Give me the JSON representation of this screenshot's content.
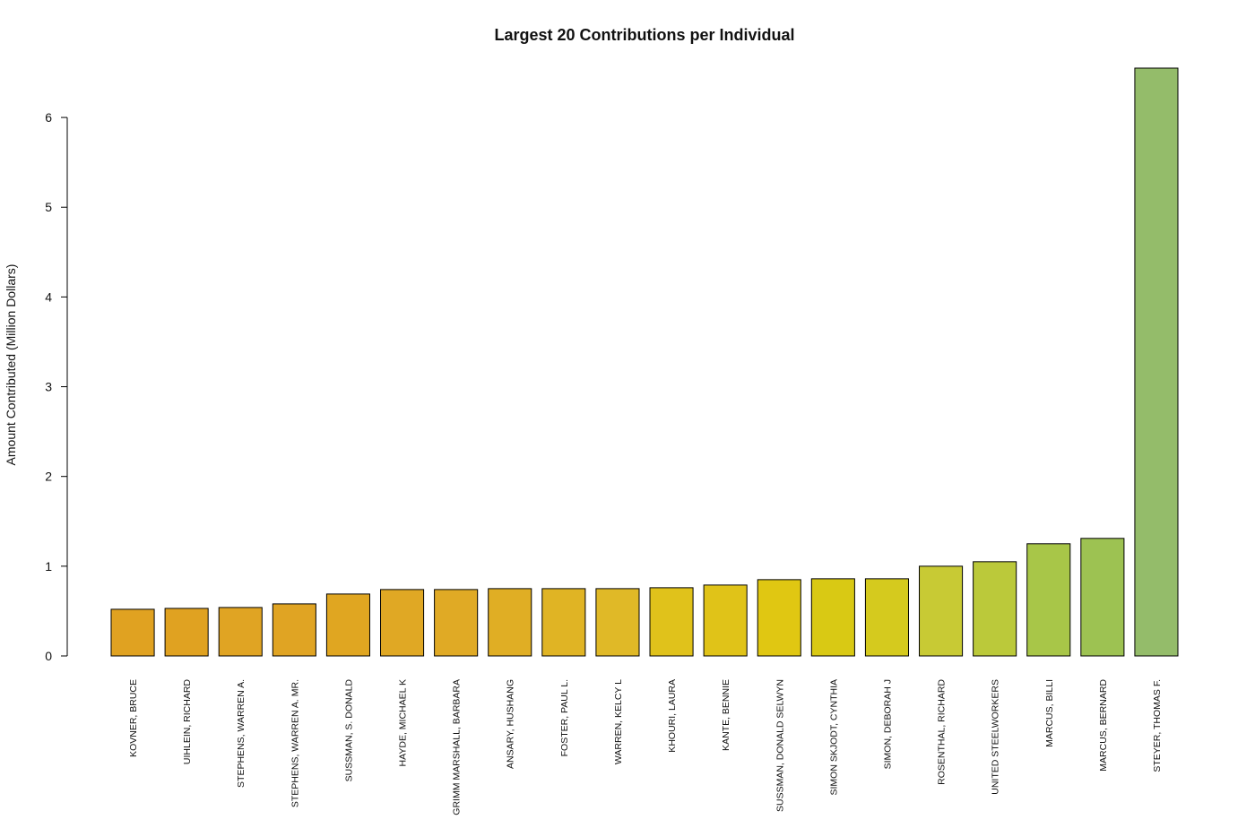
{
  "chart_data": {
    "type": "bar",
    "title": "Largest 20 Contributions per Individual",
    "xlabel": "",
    "ylabel": "Amount Contributed (Million Dollars)",
    "ylim": [
      0,
      6.55
    ],
    "yticks": [
      0,
      1,
      2,
      3,
      4,
      5,
      6
    ],
    "ytick_labels": [
      "0",
      "1",
      "2",
      "3",
      "4",
      "5",
      "6"
    ],
    "grid": false,
    "categories": [
      "KOVNER, BRUCE",
      "UIHLEIN, RICHARD",
      "STEPHENS, WARREN A.",
      "STEPHENS, WARREN A. MR.",
      "SUSSMAN, S. DONALD",
      "HAYDE, MICHAEL K",
      "GRIMM MARSHALL, BARBARA",
      "ANSARY, HUSHANG",
      "FOSTER, PAUL L.",
      "WARREN, KELCY L",
      "KHOURI, LAURA",
      "KANTE, BENNIE",
      "SUSSMAN, DONALD SELWYN",
      "SIMON SKJODT, CYNTHIA",
      "SIMON, DEBORAH J",
      "ROSENTHAL, RICHARD",
      "UNITED STEELWORKERS",
      "MARCUS, BILLI",
      "MARCUS, BERNARD",
      "STEYER, THOMAS F."
    ],
    "values": [
      0.52,
      0.53,
      0.54,
      0.58,
      0.69,
      0.74,
      0.74,
      0.75,
      0.75,
      0.75,
      0.76,
      0.79,
      0.85,
      0.86,
      0.86,
      1.0,
      1.05,
      1.25,
      1.31,
      6.55
    ],
    "colors": [
      "#E0A221",
      "#E0A221",
      "#E0A423",
      "#E0A423",
      "#E0A621",
      "#E0A824",
      "#E0AA25",
      "#E0AE24",
      "#E0B424",
      "#E0B927",
      "#E0C21B",
      "#E0C318",
      "#E0C712",
      "#D9C914",
      "#D5CA1E",
      "#C8CA34",
      "#BBC93A",
      "#A8C648",
      "#9DC252",
      "#94BC6A"
    ]
  }
}
